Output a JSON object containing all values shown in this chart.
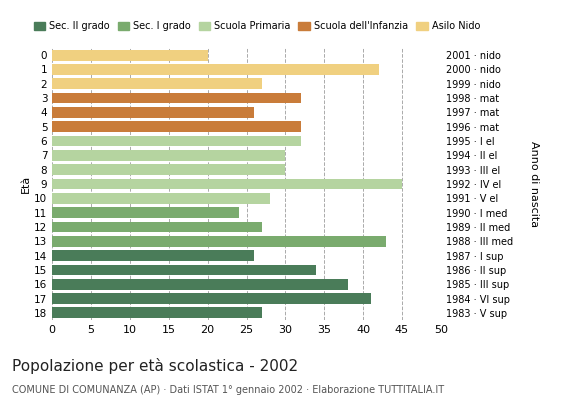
{
  "title": "Popolazione per età scolastica - 2002",
  "subtitle": "COMUNE DI COMUNANZA (AP) · Dati ISTAT 1° gennaio 2002 · Elaborazione TUTTITALIA.IT",
  "ylabel_left": "Età",
  "ylabel_right": "Anno di nascita",
  "ages": [
    18,
    17,
    16,
    15,
    14,
    13,
    12,
    11,
    10,
    9,
    8,
    7,
    6,
    5,
    4,
    3,
    2,
    1,
    0
  ],
  "years": [
    "1983 · V sup",
    "1984 · VI sup",
    "1985 · III sup",
    "1986 · II sup",
    "1987 · I sup",
    "1988 · III med",
    "1989 · II med",
    "1990 · I med",
    "1991 · V el",
    "1992 · IV el",
    "1993 · III el",
    "1994 · II el",
    "1995 · I el",
    "1996 · mat",
    "1997 · mat",
    "1998 · mat",
    "1999 · nido",
    "2000 · nido",
    "2001 · nido"
  ],
  "values": [
    27,
    41,
    38,
    34,
    26,
    43,
    27,
    24,
    28,
    45,
    30,
    30,
    32,
    32,
    26,
    32,
    27,
    42,
    20
  ],
  "colors": [
    "#4a7c59",
    "#4a7c59",
    "#4a7c59",
    "#4a7c59",
    "#4a7c59",
    "#7aab6e",
    "#7aab6e",
    "#7aab6e",
    "#b5d4a0",
    "#b5d4a0",
    "#b5d4a0",
    "#b5d4a0",
    "#b5d4a0",
    "#c97c3a",
    "#c97c3a",
    "#c97c3a",
    "#f0d080",
    "#f0d080",
    "#f0d080"
  ],
  "legend_labels": [
    "Sec. II grado",
    "Sec. I grado",
    "Scuola Primaria",
    "Scuola dell'Infanzia",
    "Asilo Nido"
  ],
  "legend_colors": [
    "#4a7c59",
    "#7aab6e",
    "#b5d4a0",
    "#c97c3a",
    "#f0d080"
  ],
  "xlim": [
    0,
    50
  ],
  "xticks": [
    0,
    5,
    10,
    15,
    20,
    25,
    30,
    35,
    40,
    45,
    50
  ],
  "background_color": "#ffffff"
}
